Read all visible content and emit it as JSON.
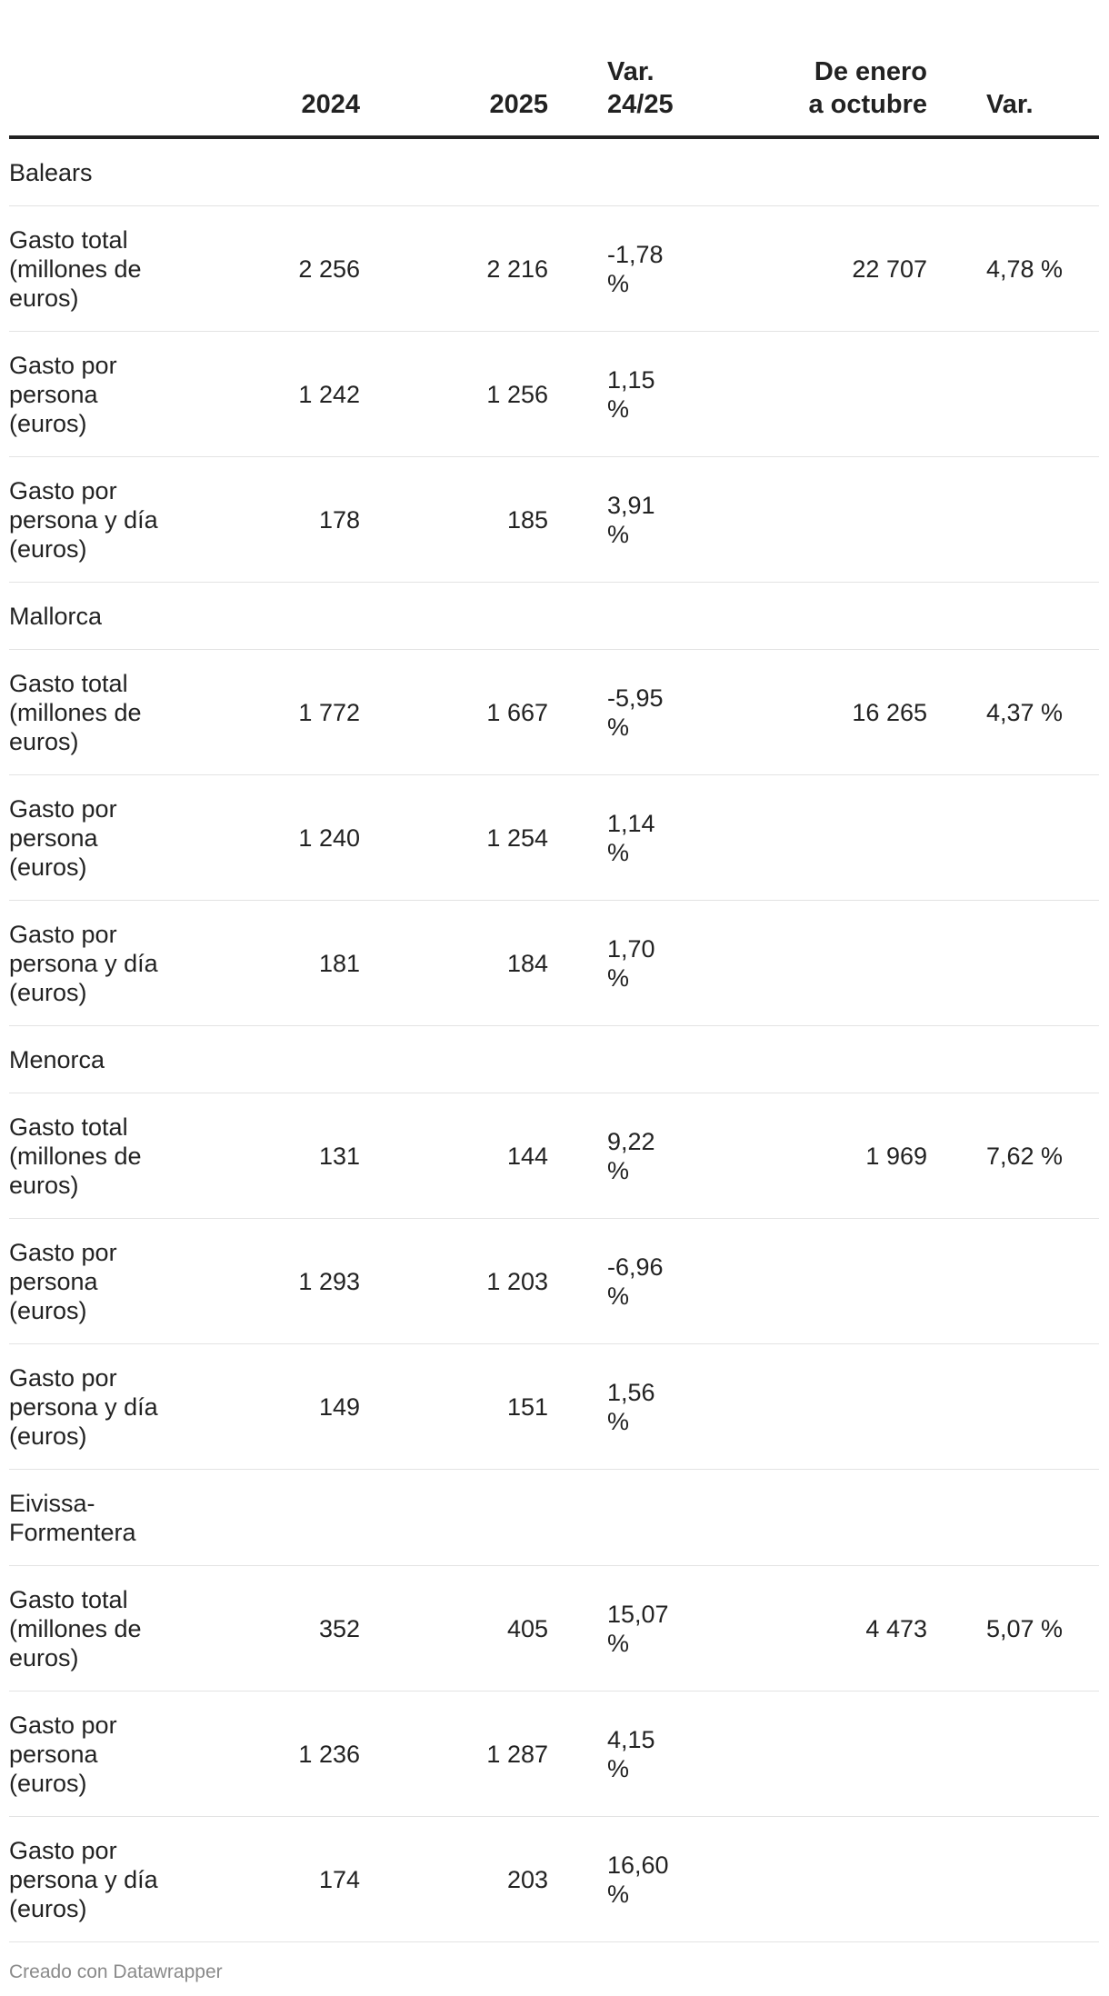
{
  "chart_data": {
    "type": "table",
    "columns": [
      "",
      "2024",
      "2025",
      "Var.\n24/25",
      "De enero\na octubre",
      "Var."
    ],
    "groups": [
      {
        "name": "Balears",
        "rows": [
          {
            "label": "Gasto total (millones de euros)",
            "y2024": "2 256",
            "y2025": "2 216",
            "var": "-1,78 %",
            "ytd": "22 707",
            "ytd_var": "4,78 %"
          },
          {
            "label": "Gasto por persona (euros)",
            "y2024": "1 242",
            "y2025": "1 256",
            "var": "1,15 %",
            "ytd": "",
            "ytd_var": ""
          },
          {
            "label": "Gasto por persona y día (euros)",
            "y2024": "178",
            "y2025": "185",
            "var": "3,91 %",
            "ytd": "",
            "ytd_var": ""
          }
        ]
      },
      {
        "name": "Mallorca",
        "rows": [
          {
            "label": "Gasto total (millones de euros)",
            "y2024": "1 772",
            "y2025": "1 667",
            "var": "-5,95 %",
            "ytd": "16 265",
            "ytd_var": "4,37 %"
          },
          {
            "label": "Gasto por persona (euros)",
            "y2024": "1 240",
            "y2025": "1 254",
            "var": "1,14 %",
            "ytd": "",
            "ytd_var": ""
          },
          {
            "label": "Gasto por persona y día (euros)",
            "y2024": "181",
            "y2025": "184",
            "var": "1,70 %",
            "ytd": "",
            "ytd_var": ""
          }
        ]
      },
      {
        "name": "Menorca",
        "rows": [
          {
            "label": "Gasto total (millones de euros)",
            "y2024": "131",
            "y2025": "144",
            "var": "9,22 %",
            "ytd": "1 969",
            "ytd_var": "7,62 %"
          },
          {
            "label": "Gasto por persona (euros)",
            "y2024": "1 293",
            "y2025": "1 203",
            "var": "-6,96 %",
            "ytd": "",
            "ytd_var": ""
          },
          {
            "label": "Gasto por persona y día (euros)",
            "y2024": "149",
            "y2025": "151",
            "var": "1,56 %",
            "ytd": "",
            "ytd_var": ""
          }
        ]
      },
      {
        "name": "Eivissa-Formentera",
        "rows": [
          {
            "label": "Gasto total (millones de euros)",
            "y2024": "352",
            "y2025": "405",
            "var": "15,07 %",
            "ytd": "4 473",
            "ytd_var": "5,07 %"
          },
          {
            "label": "Gasto por persona (euros)",
            "y2024": "1 236",
            "y2025": "1 287",
            "var": "4,15 %",
            "ytd": "",
            "ytd_var": ""
          },
          {
            "label": "Gasto por persona y día (euros)",
            "y2024": "174",
            "y2025": "203",
            "var": "16,60 %",
            "ytd": "",
            "ytd_var": ""
          }
        ]
      }
    ]
  },
  "credit": "Creado con Datawrapper"
}
